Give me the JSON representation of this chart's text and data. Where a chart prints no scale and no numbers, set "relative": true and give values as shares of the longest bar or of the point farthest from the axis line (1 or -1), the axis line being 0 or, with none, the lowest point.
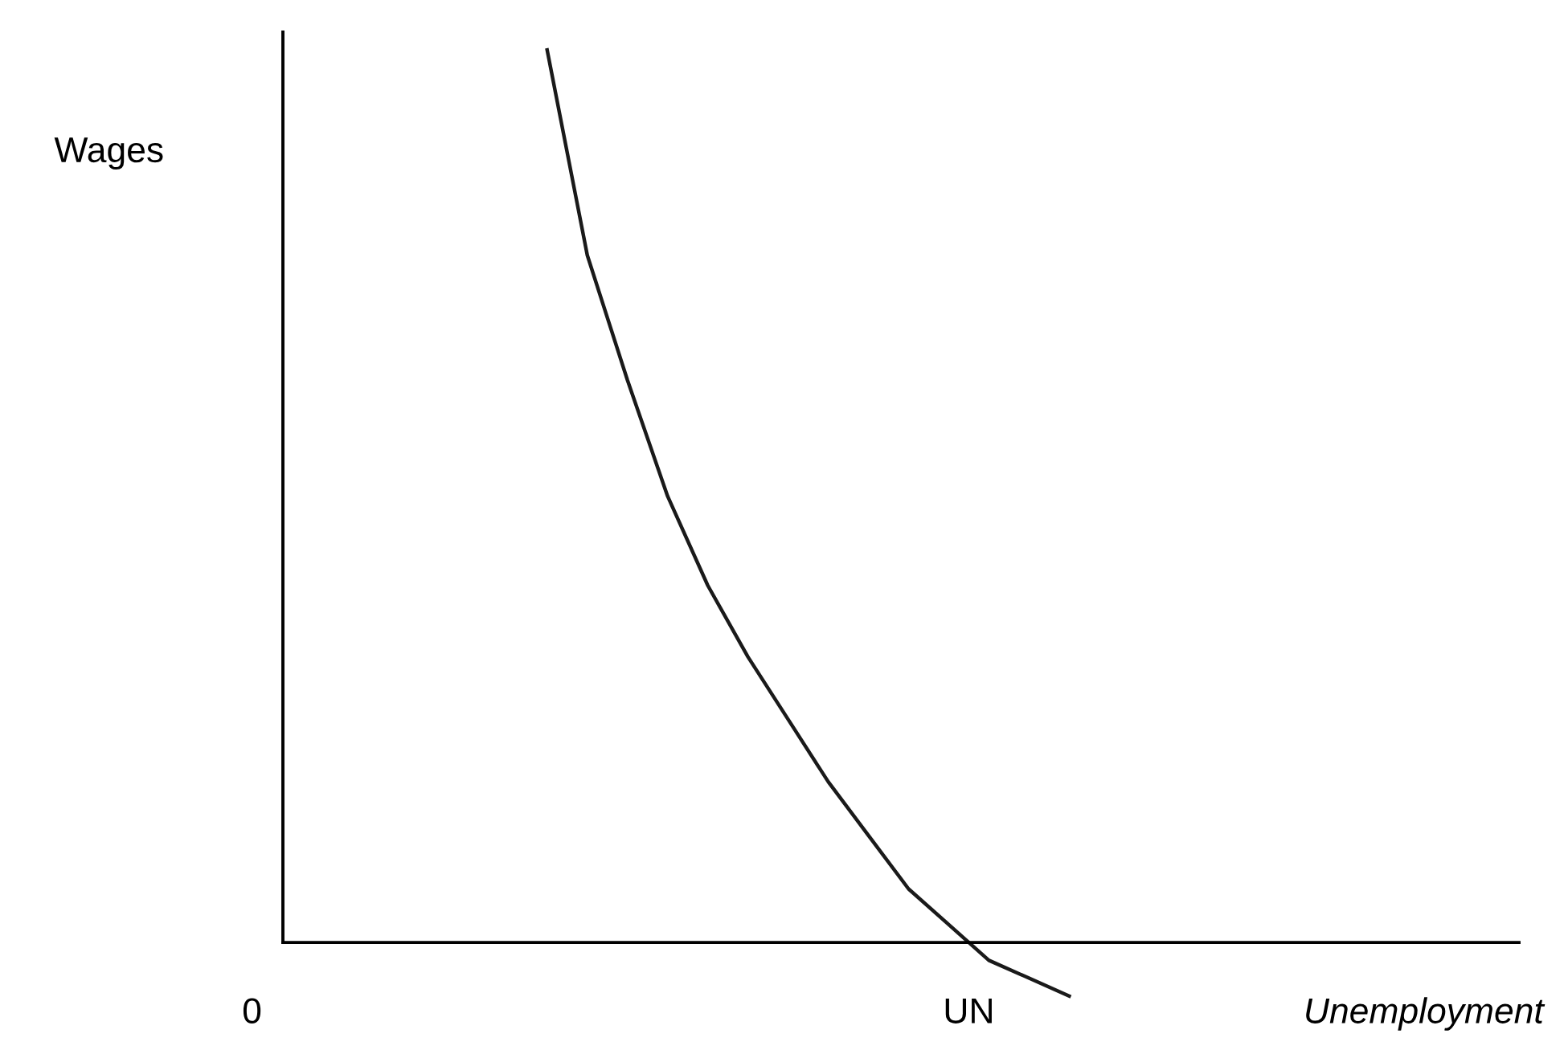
{
  "chart_data": {
    "type": "line",
    "relative": true,
    "categories": [
      null,
      null,
      null,
      null,
      null,
      null,
      null,
      null,
      null,
      null,
      null,
      null,
      null,
      null
    ],
    "annotations": [
      "Wages",
      "0",
      "UN",
      "Unemployment"
    ],
    "series": [
      {
        "color": "#1a1a1a",
        "values": [
          1,
          0.77,
          0.63,
          0.5,
          0.4,
          0.32,
          0.25,
          0.18,
          0.12,
          0.06,
          0.02,
          -0.02,
          -0.04,
          -0.06
        ]
      }
    ],
    "grid": false,
    "legend": false,
    "marker": "none",
    "line_style": "solid"
  }
}
